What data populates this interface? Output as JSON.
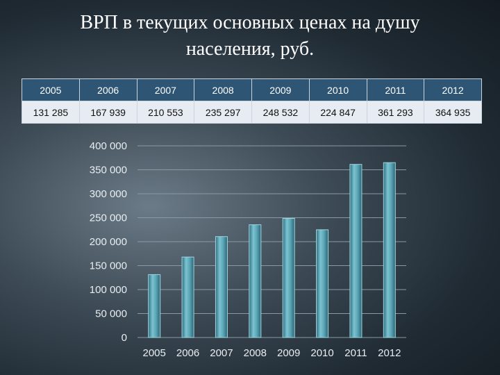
{
  "title_line1": "ВРП в текущих основных ценах на душу",
  "title_line2": "населения, руб.",
  "table": {
    "years": [
      "2005",
      "2006",
      "2007",
      "2008",
      "2009",
      "2010",
      "2011",
      "2012"
    ],
    "values": [
      "131 285",
      "167 939",
      "210 553",
      "235 297",
      "248 532",
      "224 847",
      "361 293",
      "364 935"
    ]
  },
  "chart_data": {
    "type": "bar",
    "categories": [
      "2005",
      "2006",
      "2007",
      "2008",
      "2009",
      "2010",
      "2011",
      "2012"
    ],
    "values": [
      131285,
      167939,
      210553,
      235297,
      248532,
      224847,
      361293,
      364935
    ],
    "ylim": [
      0,
      400000
    ],
    "yticks": [
      "0",
      "50 000",
      "100 000",
      "150 000",
      "200 000",
      "250 000",
      "300 000",
      "350 000",
      "400 000"
    ],
    "grid": true,
    "colors": {
      "bar": "#5aa5b5",
      "grid": "#8a9aa5",
      "tick_text": "#e8eef2"
    }
  }
}
